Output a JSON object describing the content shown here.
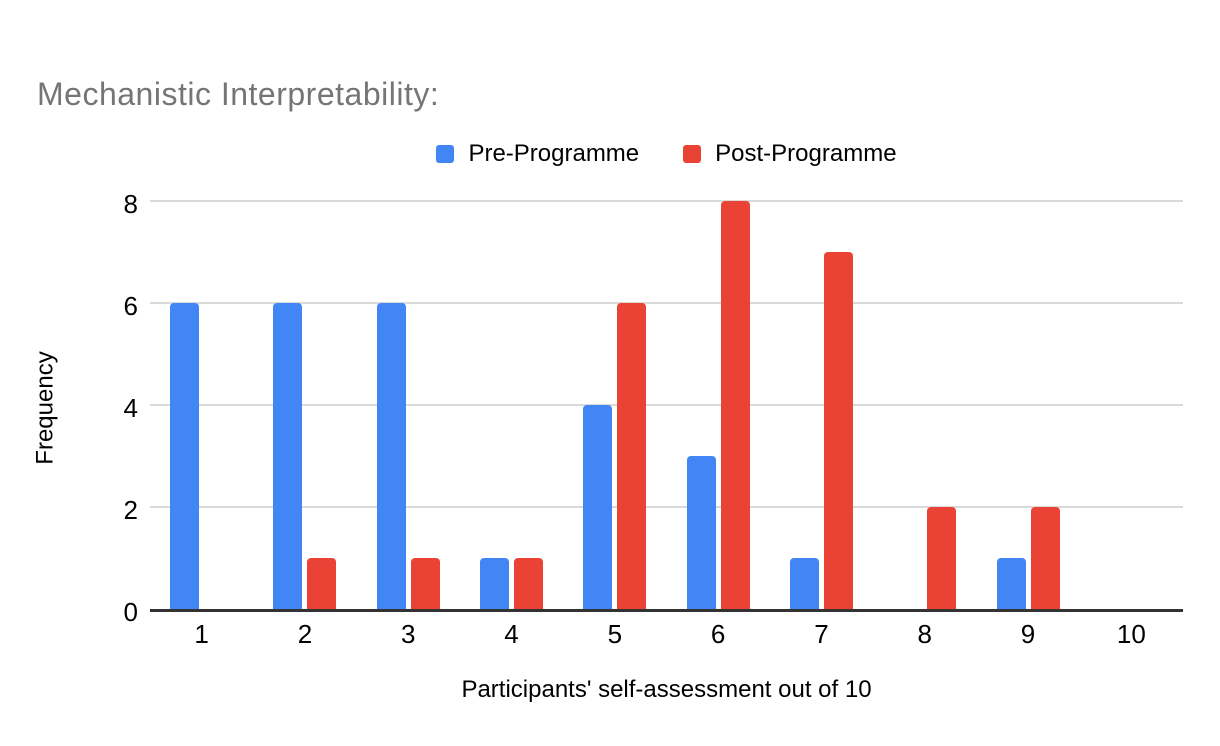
{
  "chart_data": {
    "type": "bar",
    "title": "Mechanistic Interpretability:",
    "categories": [
      "1",
      "2",
      "3",
      "4",
      "5",
      "6",
      "7",
      "8",
      "9",
      "10"
    ],
    "series": [
      {
        "name": "Pre-Programme",
        "color": "#4285F4",
        "values": [
          6,
          6,
          6,
          1,
          4,
          3,
          1,
          0,
          1,
          0
        ]
      },
      {
        "name": "Post-Programme",
        "color": "#EA4335",
        "values": [
          0,
          1,
          1,
          1,
          6,
          8,
          7,
          2,
          2,
          0
        ]
      }
    ],
    "xlabel": "Participants' self-assessment out of 10",
    "ylabel": "Frequency",
    "ylim": [
      0,
      8
    ],
    "yticks": [
      0,
      2,
      4,
      6,
      8
    ],
    "grid": "horizontal",
    "legend_position": "top",
    "colors": {
      "title": "#757575",
      "text": "#000000",
      "grid": "#d9d9d9",
      "axis_line": "#333333"
    }
  }
}
